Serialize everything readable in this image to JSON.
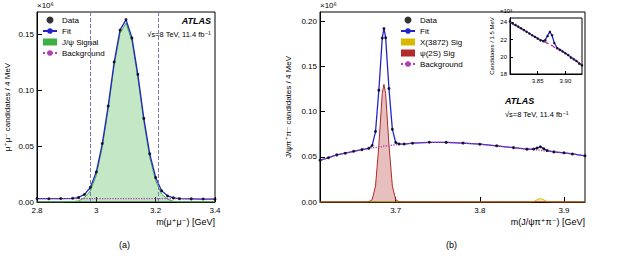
{
  "chart_data": [
    {
      "type": "line",
      "caption": "(a)",
      "x_label": "m(μ⁺μ⁻) [GeV]",
      "y_label": "μ⁺μ⁻ candidates / 4 MeV",
      "y_multiplier": "×10⁶",
      "annotations": [
        "ATLAS",
        "√s=8 TeV, 11.4 fb⁻¹"
      ],
      "legend": "upper left",
      "grid": false,
      "xlim": [
        2.8,
        3.4
      ],
      "ylim": [
        0,
        0.17
      ],
      "xticks": [
        2.8,
        3,
        3.2,
        3.4
      ],
      "yticks": [
        {
          "value": 0,
          "label": "0.00"
        },
        0.05,
        {
          "value": 0.1,
          "label": "0.10"
        },
        0.15
      ],
      "signal_window": [
        2.98,
        3.21
      ],
      "x": [
        2.8,
        2.84,
        2.88,
        2.92,
        2.94,
        2.96,
        2.98,
        3,
        3.02,
        3.04,
        3.06,
        3.08,
        3.1,
        3.12,
        3.14,
        3.16,
        3.18,
        3.2,
        3.22,
        3.24,
        3.26,
        3.28,
        3.32,
        3.36,
        3.4
      ],
      "series": [
        {
          "name": "Data",
          "type": "scatter",
          "marker": "circle",
          "color": "#000000",
          "values": [
            0.0031,
            0.0029,
            0.0031,
            0.0034,
            0.0041,
            0.0067,
            0.0132,
            0.0268,
            0.0523,
            0.0858,
            0.1252,
            0.1538,
            0.1632,
            0.1468,
            0.1142,
            0.0748,
            0.0432,
            0.0219,
            0.0101,
            0.0054,
            0.0037,
            0.003,
            0.0028,
            0.0027,
            0.0025
          ]
        },
        {
          "name": "Fit",
          "type": "line",
          "line_style": "solid",
          "color": "#2424c8",
          "values": [
            0.003,
            0.003,
            0.003,
            0.0033,
            0.004,
            0.0068,
            0.013,
            0.027,
            0.052,
            0.086,
            0.125,
            0.154,
            0.163,
            0.147,
            0.114,
            0.075,
            0.043,
            0.022,
            0.01,
            0.0055,
            0.0036,
            0.003,
            0.0028,
            0.0026,
            0.0025
          ]
        },
        {
          "name": "J/ψ Signal",
          "type": "area",
          "line_style": "solid",
          "color": "#3cb043",
          "values": [
            0,
            0,
            0,
            0.0003,
            0.001,
            0.0038,
            0.01,
            0.024,
            0.049,
            0.083,
            0.122,
            0.151,
            0.16,
            0.144,
            0.111,
            0.072,
            0.04,
            0.019,
            0.007,
            0.0025,
            0.0006,
            0,
            0,
            0,
            0
          ]
        },
        {
          "name": "Background",
          "type": "line",
          "line_style": "dotted",
          "color": "#b040b0",
          "values": [
            0.003,
            0.003,
            0.003,
            0.003,
            0.003,
            0.003,
            0.003,
            0.003,
            0.003,
            0.003,
            0.003,
            0.003,
            0.003,
            0.003,
            0.003,
            0.003,
            0.003,
            0.003,
            0.003,
            0.003,
            0.003,
            0.003,
            0.0028,
            0.0026,
            0.0025
          ]
        }
      ]
    },
    {
      "type": "line",
      "caption": "(b)",
      "x_label": "m(J/ψπ⁺π⁻) [GeV]",
      "y_label": "J/ψπ⁺π⁻ candidates / 4 MeV",
      "y_multiplier": "×10⁶",
      "annotations": [
        "ATLAS",
        "√s=8 TeV, 11.4 fb⁻¹"
      ],
      "legend": "upper center",
      "grid": false,
      "xlim": [
        3.61,
        3.925
      ],
      "ylim": [
        0,
        0.21
      ],
      "xticks": [
        3.7,
        3.8,
        3.9
      ],
      "yticks": [
        {
          "value": 0,
          "label": "0.00"
        },
        0.05,
        {
          "value": 0.1,
          "label": "0.10"
        },
        0.15,
        {
          "value": 0.2,
          "label": "0.20"
        }
      ],
      "x": [
        3.61,
        3.62,
        3.63,
        3.64,
        3.65,
        3.66,
        3.668,
        3.672,
        3.676,
        3.68,
        3.684,
        3.686,
        3.688,
        3.692,
        3.696,
        3.7,
        3.704,
        3.71,
        3.72,
        3.74,
        3.76,
        3.78,
        3.8,
        3.82,
        3.84,
        3.856,
        3.864,
        3.868,
        3.872,
        3.876,
        3.88,
        3.888,
        3.9,
        3.91,
        3.925
      ],
      "series": [
        {
          "name": "Data",
          "type": "scatter",
          "marker": "circle",
          "color": "#000000",
          "values": [
            0.0462,
            0.0489,
            0.0521,
            0.0539,
            0.0561,
            0.0579,
            0.0593,
            0.0624,
            0.0779,
            0.1236,
            0.1812,
            0.1918,
            0.1815,
            0.1254,
            0.0803,
            0.0658,
            0.0641,
            0.0641,
            0.0649,
            0.0661,
            0.0659,
            0.0651,
            0.0639,
            0.0621,
            0.0601,
            0.0584,
            0.0585,
            0.0597,
            0.0611,
            0.0589,
            0.0568,
            0.0554,
            0.0544,
            0.0531,
            0.0511
          ]
        },
        {
          "name": "Fit",
          "type": "line",
          "line_style": "solid",
          "color": "#2424c8",
          "values": [
            0.046,
            0.049,
            0.052,
            0.054,
            0.056,
            0.058,
            0.0592,
            0.0626,
            0.0776,
            0.124,
            0.181,
            0.192,
            0.182,
            0.125,
            0.0806,
            0.0656,
            0.0642,
            0.064,
            0.065,
            0.066,
            0.066,
            0.065,
            0.064,
            0.062,
            0.06,
            0.0585,
            0.0583,
            0.0598,
            0.061,
            0.059,
            0.0567,
            0.0555,
            0.0543,
            0.0532,
            0.051
          ]
        },
        {
          "name": "X(3872) Sig",
          "type": "area",
          "line_style": "solid",
          "color": "#d9b800",
          "values": [
            0,
            0,
            0,
            0,
            0,
            0,
            0,
            0,
            0,
            0,
            0,
            0,
            0,
            0,
            0,
            0,
            0,
            0,
            0,
            0,
            0,
            0,
            0,
            0,
            0,
            0,
            0.0005,
            0.0024,
            0.004,
            0.0024,
            0.0005,
            0,
            0,
            0,
            0
          ]
        },
        {
          "name": "ψ(2S) Sig",
          "type": "area",
          "line_style": "solid",
          "color": "#b22a2a",
          "values": [
            0,
            0,
            0,
            0,
            0,
            0,
            0.0002,
            0.0026,
            0.0176,
            0.063,
            0.12,
            0.13,
            0.12,
            0.063,
            0.0176,
            0.0026,
            0.0002,
            0,
            0,
            0,
            0,
            0,
            0,
            0,
            0,
            0,
            0,
            0,
            0,
            0,
            0,
            0,
            0,
            0,
            0
          ]
        },
        {
          "name": "Background",
          "type": "line",
          "line_style": "dotted",
          "color": "#b040b0",
          "values": [
            0.046,
            0.049,
            0.052,
            0.054,
            0.056,
            0.058,
            0.059,
            0.06,
            0.06,
            0.061,
            0.061,
            0.062,
            0.062,
            0.062,
            0.063,
            0.063,
            0.064,
            0.064,
            0.065,
            0.066,
            0.066,
            0.065,
            0.064,
            0.062,
            0.06,
            0.0585,
            0.0578,
            0.0574,
            0.057,
            0.0566,
            0.0562,
            0.0555,
            0.0543,
            0.0532,
            0.051
          ]
        }
      ]
    },
    {
      "type": "line",
      "y_label": "Candidates / 1.5 MeV",
      "y_multiplier": "×10³",
      "grid": false,
      "xlim": [
        3.8,
        3.93
      ],
      "ylim": [
        18,
        24.5
      ],
      "xticks": [
        3.85,
        {
          "value": 3.9,
          "label": "3.90"
        }
      ],
      "yticks": [
        18,
        20,
        22,
        24
      ],
      "x": [
        3.8,
        3.805,
        3.81,
        3.815,
        3.82,
        3.825,
        3.83,
        3.835,
        3.84,
        3.845,
        3.85,
        3.855,
        3.86,
        3.864,
        3.868,
        3.872,
        3.876,
        3.88,
        3.885,
        3.89,
        3.895,
        3.9,
        3.905,
        3.91,
        3.915,
        3.92,
        3.925,
        3.93
      ],
      "series": [
        {
          "name": "Data",
          "type": "scatter",
          "marker": "circle",
          "color": "#000000",
          "values": [
            24.1,
            23.9,
            23.7,
            23.5,
            23.3,
            23.1,
            22.9,
            22.7,
            22.5,
            22.3,
            22.1,
            21.9,
            21.8,
            21.9,
            22.4,
            22.9,
            22.5,
            21.6,
            21.0,
            20.8,
            20.6,
            20.4,
            20.2,
            19.9,
            19.7,
            19.5,
            19.2,
            19.0
          ]
        },
        {
          "name": "Fit",
          "type": "line",
          "line_style": "solid",
          "color": "#2424c8",
          "values": [
            24.0,
            23.8,
            23.65,
            23.45,
            23.3,
            23.1,
            22.9,
            22.7,
            22.5,
            22.3,
            22.15,
            21.95,
            21.85,
            22.0,
            22.5,
            22.9,
            22.45,
            21.6,
            21.05,
            20.85,
            20.65,
            20.4,
            20.2,
            19.95,
            19.75,
            19.5,
            19.25,
            19.0
          ]
        },
        {
          "name": "Background",
          "type": "line",
          "line_style": "dashed",
          "color": "#b040b0",
          "values": [
            24.0,
            23.82,
            23.65,
            23.47,
            23.3,
            23.1,
            22.9,
            22.7,
            22.5,
            22.3,
            22.15,
            21.95,
            21.8,
            21.68,
            21.55,
            21.4,
            21.3,
            21.1,
            20.95,
            20.8,
            20.6,
            20.4,
            20.2,
            19.95,
            19.75,
            19.5,
            19.25,
            19.0
          ]
        }
      ]
    }
  ]
}
